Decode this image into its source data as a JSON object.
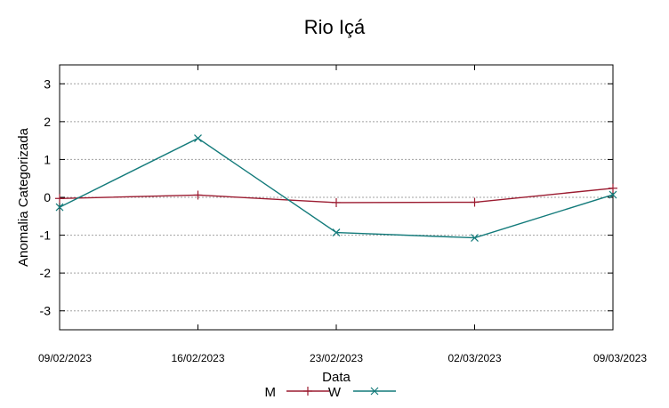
{
  "chart_data": {
    "type": "line",
    "title": "Rio Içá",
    "xlabel": "Data",
    "ylabel": "Anomalia Categorizada",
    "categories": [
      "09/02/2023",
      "16/02/2023",
      "23/02/2023",
      "02/03/2023",
      "09/03/2023"
    ],
    "ylim": [
      -3.5,
      3.5
    ],
    "yticks": [
      3,
      2,
      1,
      0,
      -1,
      -2,
      -3
    ],
    "ytick_labels": [
      "3",
      "2",
      "1",
      "0",
      "-1",
      "-2",
      "-3"
    ],
    "grid": true,
    "legend_position": "bottom-center",
    "series": [
      {
        "name": "M",
        "values": [
          -0.03,
          0.06,
          -0.14,
          -0.13,
          0.24
        ],
        "color": "#9b1b30",
        "marker": "plus"
      },
      {
        "name": "W",
        "values": [
          -0.26,
          1.56,
          -0.93,
          -1.07,
          0.07
        ],
        "color": "#127a7a",
        "marker": "cross"
      }
    ]
  }
}
